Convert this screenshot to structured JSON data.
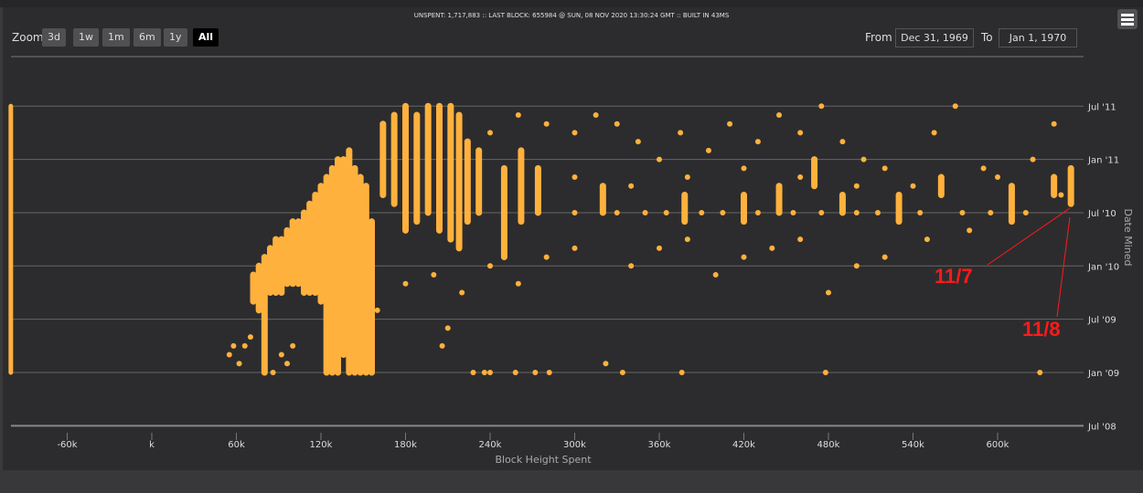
{
  "header": {
    "info": "UNSPENT: 1,717,883 :: LAST BLOCK: 655984 @ SUN, 08 NOV 2020 13:30:24 GMT :: BUILT IN 43MS"
  },
  "zoom": {
    "label": "Zoom",
    "buttons": [
      "3d",
      "1w",
      "1m",
      "6m",
      "1y",
      "All"
    ],
    "selected": "All"
  },
  "range": {
    "from_label": "From",
    "from": "Dec 31, 1969",
    "to_label": "To",
    "to": "Jan 1, 1970"
  },
  "menu_icon": "hamburger-icon",
  "chart_data": {
    "type": "scatter",
    "xlabel": "Block Height Spent",
    "ylabel": "Date Mined",
    "x_ticks": [
      {
        "v": -60000,
        "label": "-60k"
      },
      {
        "v": 0,
        "label": "k"
      },
      {
        "v": 60000,
        "label": "60k"
      },
      {
        "v": 120000,
        "label": "120k"
      },
      {
        "v": 180000,
        "label": "180k"
      },
      {
        "v": 240000,
        "label": "240k"
      },
      {
        "v": 300000,
        "label": "300k"
      },
      {
        "v": 360000,
        "label": "360k"
      },
      {
        "v": 420000,
        "label": "420k"
      },
      {
        "v": 480000,
        "label": "480k"
      },
      {
        "v": 540000,
        "label": "540k"
      },
      {
        "v": 600000,
        "label": "600k"
      }
    ],
    "y_ticks": [
      {
        "v": "2008-07",
        "label": "Jul '08"
      },
      {
        "v": "2009-01",
        "label": "Jan '09"
      },
      {
        "v": "2009-07",
        "label": "Jul '09"
      },
      {
        "v": "2010-01",
        "label": "Jan '10"
      },
      {
        "v": "2010-07",
        "label": "Jul '10"
      },
      {
        "v": "2011-01",
        "label": "Jan '11"
      },
      {
        "v": "2011-07",
        "label": "Jul '11"
      }
    ],
    "xlim": [
      -100000,
      656000
    ],
    "ylim": [
      "2008-07",
      "2011-09"
    ],
    "grid": true,
    "color": "#ffb13d",
    "ranges": [
      [
        -100000,
        "2009-01",
        "2011-07"
      ],
      [
        72000,
        "2009-09",
        "2009-12"
      ],
      [
        76000,
        "2009-08",
        "2010-01"
      ],
      [
        80000,
        "2009-01",
        "2010-02"
      ],
      [
        84000,
        "2009-10",
        "2010-03"
      ],
      [
        88000,
        "2009-10",
        "2010-04"
      ],
      [
        92000,
        "2009-10",
        "2010-04"
      ],
      [
        96000,
        "2009-11",
        "2010-05"
      ],
      [
        100000,
        "2009-11",
        "2010-06"
      ],
      [
        104000,
        "2009-11",
        "2010-06"
      ],
      [
        108000,
        "2009-10",
        "2010-07"
      ],
      [
        112000,
        "2009-10",
        "2010-08"
      ],
      [
        116000,
        "2009-10",
        "2010-09"
      ],
      [
        120000,
        "2009-09",
        "2010-10"
      ],
      [
        124000,
        "2009-01",
        "2010-11"
      ],
      [
        128000,
        "2009-01",
        "2010-12"
      ],
      [
        132000,
        "2009-01",
        "2011-01"
      ],
      [
        136000,
        "2009-03",
        "2011-01"
      ],
      [
        140000,
        "2009-01",
        "2011-02"
      ],
      [
        144000,
        "2009-01",
        "2010-12"
      ],
      [
        148000,
        "2009-01",
        "2010-11"
      ],
      [
        152000,
        "2009-01",
        "2010-10"
      ],
      [
        156000,
        "2009-01",
        "2010-06"
      ],
      [
        164000,
        "2010-09",
        "2011-05"
      ],
      [
        172000,
        "2010-08",
        "2011-06"
      ],
      [
        180000,
        "2010-05",
        "2011-07"
      ],
      [
        188000,
        "2010-06",
        "2011-06"
      ],
      [
        196000,
        "2010-07",
        "2011-07"
      ],
      [
        204000,
        "2010-05",
        "2011-07"
      ],
      [
        212000,
        "2010-04",
        "2011-07"
      ],
      [
        218000,
        "2010-03",
        "2011-06"
      ],
      [
        224000,
        "2010-06",
        "2011-03"
      ],
      [
        232000,
        "2010-07",
        "2011-02"
      ],
      [
        250000,
        "2010-02",
        "2010-12"
      ],
      [
        262000,
        "2010-06",
        "2011-02"
      ],
      [
        274000,
        "2010-07",
        "2010-12"
      ],
      [
        320000,
        "2010-07",
        "2010-10"
      ],
      [
        378000,
        "2010-06",
        "2010-09"
      ],
      [
        420000,
        "2010-06",
        "2010-09"
      ],
      [
        445000,
        "2010-07",
        "2010-10"
      ],
      [
        470000,
        "2010-10",
        "2011-01"
      ],
      [
        490000,
        "2010-07",
        "2010-09"
      ],
      [
        530000,
        "2010-06",
        "2010-09"
      ],
      [
        560000,
        "2010-09",
        "2010-11"
      ],
      [
        610000,
        "2010-06",
        "2010-10"
      ],
      [
        640000,
        "2010-09",
        "2010-11"
      ],
      [
        652000,
        "2010-08",
        "2010-12"
      ]
    ],
    "points": [
      [
        55000,
        "2009-03"
      ],
      [
        58000,
        "2009-04"
      ],
      [
        62000,
        "2009-02"
      ],
      [
        66000,
        "2009-04"
      ],
      [
        70000,
        "2009-05"
      ],
      [
        92000,
        "2009-03"
      ],
      [
        96000,
        "2009-02"
      ],
      [
        100000,
        "2009-04"
      ],
      [
        86000,
        "2009-01"
      ],
      [
        228000,
        "2009-01"
      ],
      [
        236000,
        "2009-01"
      ],
      [
        240000,
        "2009-01"
      ],
      [
        258000,
        "2009-01"
      ],
      [
        272000,
        "2009-01"
      ],
      [
        282000,
        "2009-01"
      ],
      [
        322000,
        "2009-02"
      ],
      [
        334000,
        "2009-01"
      ],
      [
        376000,
        "2009-01"
      ],
      [
        478000,
        "2009-01"
      ],
      [
        630000,
        "2009-01"
      ],
      [
        210000,
        "2009-06"
      ],
      [
        206000,
        "2009-04"
      ],
      [
        160000,
        "2009-08"
      ],
      [
        180000,
        "2009-11"
      ],
      [
        200000,
        "2009-12"
      ],
      [
        220000,
        "2009-10"
      ],
      [
        240000,
        "2010-01"
      ],
      [
        260000,
        "2009-11"
      ],
      [
        280000,
        "2010-02"
      ],
      [
        300000,
        "2010-03"
      ],
      [
        340000,
        "2010-01"
      ],
      [
        360000,
        "2010-03"
      ],
      [
        380000,
        "2010-04"
      ],
      [
        400000,
        "2009-12"
      ],
      [
        420000,
        "2010-02"
      ],
      [
        440000,
        "2010-03"
      ],
      [
        460000,
        "2010-04"
      ],
      [
        480000,
        "2009-10"
      ],
      [
        500000,
        "2010-01"
      ],
      [
        520000,
        "2010-02"
      ],
      [
        550000,
        "2010-04"
      ],
      [
        580000,
        "2010-05"
      ],
      [
        300000,
        "2010-07"
      ],
      [
        330000,
        "2010-07"
      ],
      [
        350000,
        "2010-07"
      ],
      [
        365000,
        "2010-07"
      ],
      [
        390000,
        "2010-07"
      ],
      [
        405000,
        "2010-07"
      ],
      [
        430000,
        "2010-07"
      ],
      [
        455000,
        "2010-07"
      ],
      [
        475000,
        "2010-07"
      ],
      [
        500000,
        "2010-07"
      ],
      [
        515000,
        "2010-07"
      ],
      [
        545000,
        "2010-07"
      ],
      [
        575000,
        "2010-07"
      ],
      [
        595000,
        "2010-07"
      ],
      [
        620000,
        "2010-07"
      ],
      [
        300000,
        "2011-04"
      ],
      [
        315000,
        "2011-06"
      ],
      [
        330000,
        "2011-05"
      ],
      [
        345000,
        "2011-03"
      ],
      [
        360000,
        "2011-01"
      ],
      [
        375000,
        "2011-04"
      ],
      [
        395000,
        "2011-02"
      ],
      [
        410000,
        "2011-05"
      ],
      [
        430000,
        "2011-03"
      ],
      [
        445000,
        "2011-06"
      ],
      [
        460000,
        "2011-04"
      ],
      [
        475000,
        "2011-07"
      ],
      [
        490000,
        "2011-03"
      ],
      [
        505000,
        "2011-01"
      ],
      [
        520000,
        "2010-12"
      ],
      [
        555000,
        "2011-04"
      ],
      [
        570000,
        "2011-07"
      ],
      [
        590000,
        "2010-12"
      ],
      [
        625000,
        "2011-01"
      ],
      [
        640000,
        "2011-05"
      ],
      [
        300000,
        "2010-11"
      ],
      [
        340000,
        "2010-10"
      ],
      [
        380000,
        "2010-11"
      ],
      [
        420000,
        "2010-12"
      ],
      [
        460000,
        "2010-11"
      ],
      [
        500000,
        "2010-10"
      ],
      [
        540000,
        "2010-10"
      ],
      [
        600000,
        "2010-11"
      ],
      [
        645000,
        "2010-09"
      ],
      [
        280000,
        "2011-05"
      ],
      [
        260000,
        "2011-06"
      ],
      [
        240000,
        "2011-04"
      ]
    ],
    "annotations": [
      {
        "label": "11/7",
        "color": "#ff1a1a"
      },
      {
        "label": "11/8",
        "color": "#ff1a1a"
      }
    ]
  }
}
